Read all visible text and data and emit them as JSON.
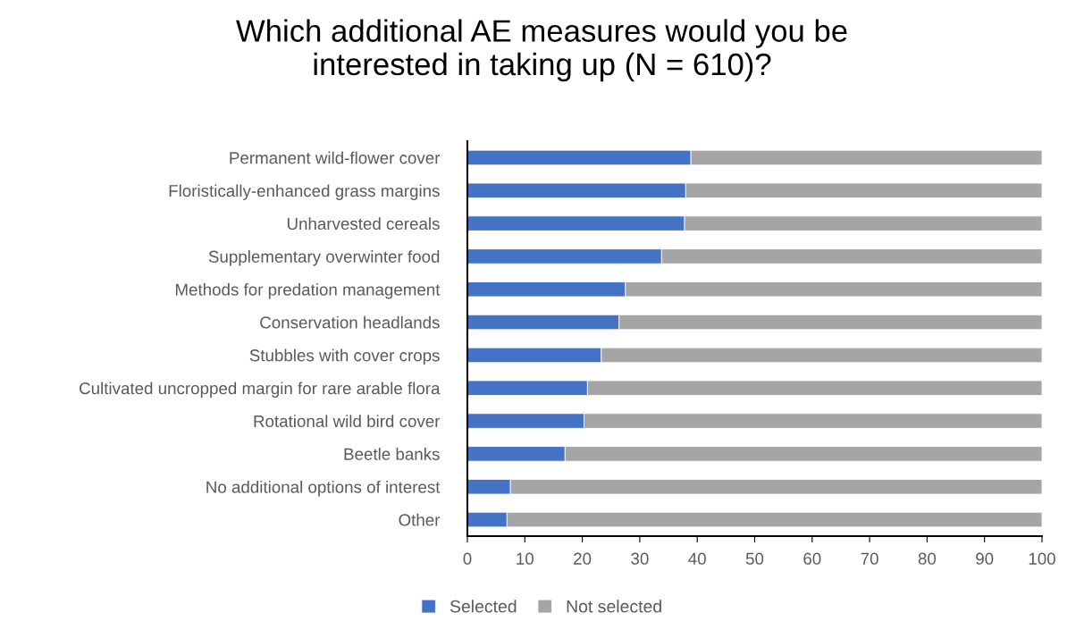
{
  "chart_data": {
    "type": "bar",
    "orientation": "horizontal",
    "stacked": true,
    "title": "Which additional AE measures would you be\ninterested in taking up (N = 610)?",
    "categories": [
      "Permanent wild-flower cover",
      "Floristically-enhanced grass margins",
      "Unharvested cereals",
      "Supplementary overwinter food",
      "Methods for predation management",
      "Conservation headlands",
      "Stubbles with cover crops",
      "Cultivated uncropped margin for rare arable flora",
      "Rotational wild bird cover",
      "Beetle banks",
      "No additional options of interest",
      "Other"
    ],
    "series": [
      {
        "name": "Selected",
        "color": "#4472c4",
        "values": [
          38.9,
          38.0,
          37.8,
          33.8,
          27.5,
          26.4,
          23.3,
          20.9,
          20.3,
          17.0,
          7.5,
          6.9
        ]
      },
      {
        "name": "Not selected",
        "color": "#a5a5a5",
        "values": [
          61.1,
          62.0,
          62.2,
          66.2,
          72.5,
          73.6,
          76.7,
          79.1,
          79.7,
          83.0,
          92.5,
          93.1
        ]
      }
    ],
    "xlim": [
      0,
      100
    ],
    "xticks": [
      0,
      10,
      20,
      30,
      40,
      50,
      60,
      70,
      80,
      90,
      100
    ],
    "grid": false,
    "legend": "bottom"
  }
}
